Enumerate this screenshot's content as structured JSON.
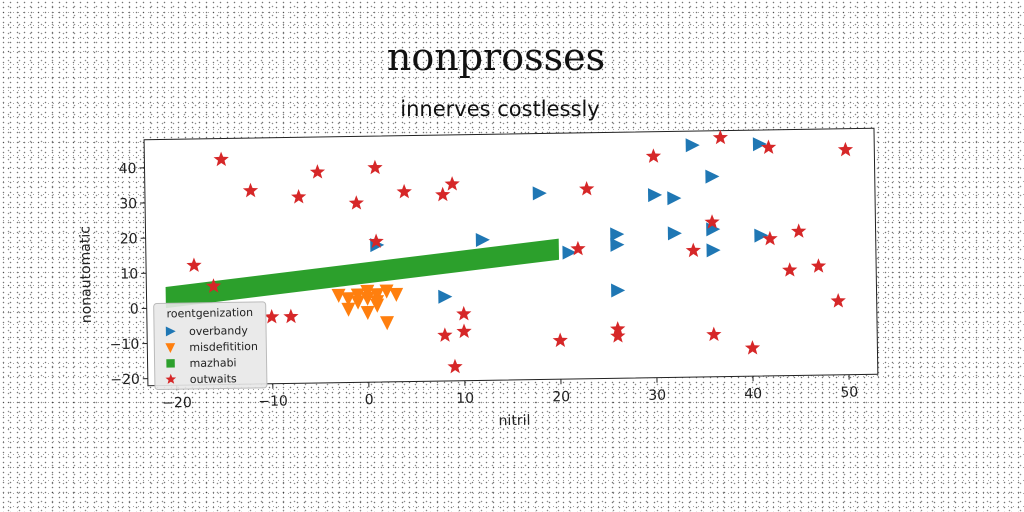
{
  "chart_data": {
    "type": "scatter",
    "title": "nonprosses",
    "subtitle": "innerves costlessly",
    "xlabel": "nitril",
    "ylabel": "nonautomatic",
    "xlim": [
      -23,
      53
    ],
    "ylim": [
      -22,
      48
    ],
    "x_ticks": [
      -20,
      -10,
      0,
      10,
      20,
      30,
      40,
      50
    ],
    "y_ticks": [
      -20,
      -10,
      0,
      10,
      20,
      30,
      40
    ],
    "grid": false,
    "legend": {
      "title": "roentgenization",
      "placement": "lower-left"
    },
    "colors": {
      "overbandy": "#1f77b4",
      "misdefitition": "#ff7f0e",
      "mazhabi": "#2ca02c",
      "outwaits": "#d62728"
    },
    "series": [
      {
        "name": "overbandy",
        "marker": "triangle-right",
        "color": "#1f77b4",
        "points": [
          [
            18,
            31
          ],
          [
            21,
            14
          ],
          [
            34,
            44
          ],
          [
            41,
            44
          ],
          [
            36,
            35
          ],
          [
            32,
            29
          ],
          [
            30,
            30
          ],
          [
            32,
            19
          ],
          [
            36,
            20
          ],
          [
            36,
            14
          ],
          [
            41,
            18
          ],
          [
            26,
            19
          ],
          [
            26,
            16
          ],
          [
            26,
            3
          ],
          [
            8,
            2
          ],
          [
            1,
            17
          ],
          [
            12,
            18
          ]
        ]
      },
      {
        "name": "misdefitition",
        "marker": "triangle-down",
        "color": "#ff7f0e",
        "points": [
          [
            -3,
            3
          ],
          [
            -2,
            2
          ],
          [
            -1,
            1
          ],
          [
            0,
            2
          ],
          [
            1,
            3
          ],
          [
            2,
            4
          ],
          [
            3,
            3
          ],
          [
            -2,
            -1
          ],
          [
            0,
            -2
          ],
          [
            1,
            0
          ],
          [
            2,
            -5
          ],
          [
            -1,
            3
          ],
          [
            0,
            4
          ],
          [
            1,
            1
          ]
        ]
      },
      {
        "name": "mazhabi",
        "marker": "band",
        "color": "#2ca02c",
        "x": [
          -21,
          20
        ],
        "lower": [
          0,
          12
        ],
        "upper": [
          6,
          18
        ]
      },
      {
        "name": "outwaits",
        "marker": "star",
        "color": "#d62728",
        "points": [
          [
            -15,
            42
          ],
          [
            -12,
            33
          ],
          [
            -7,
            31
          ],
          [
            -5,
            38
          ],
          [
            -1,
            29
          ],
          [
            1,
            18
          ],
          [
            1,
            39
          ],
          [
            4,
            32
          ],
          [
            8,
            31
          ],
          [
            9,
            34
          ],
          [
            23,
            32
          ],
          [
            22,
            15
          ],
          [
            20,
            -11
          ],
          [
            10,
            -3
          ],
          [
            10,
            -8
          ],
          [
            8,
            -9
          ],
          [
            9,
            -18
          ],
          [
            26,
            -8
          ],
          [
            26,
            -10
          ],
          [
            -18,
            12
          ],
          [
            -16,
            6
          ],
          [
            -10,
            -3
          ],
          [
            -8,
            -3
          ],
          [
            30,
            41
          ],
          [
            37,
            46
          ],
          [
            42,
            43
          ],
          [
            50,
            42
          ],
          [
            36,
            22
          ],
          [
            34,
            14
          ],
          [
            42,
            17
          ],
          [
            45,
            19
          ],
          [
            44,
            8
          ],
          [
            47,
            9
          ],
          [
            49,
            -1
          ],
          [
            36,
            -10
          ],
          [
            40,
            -14
          ]
        ]
      }
    ]
  }
}
